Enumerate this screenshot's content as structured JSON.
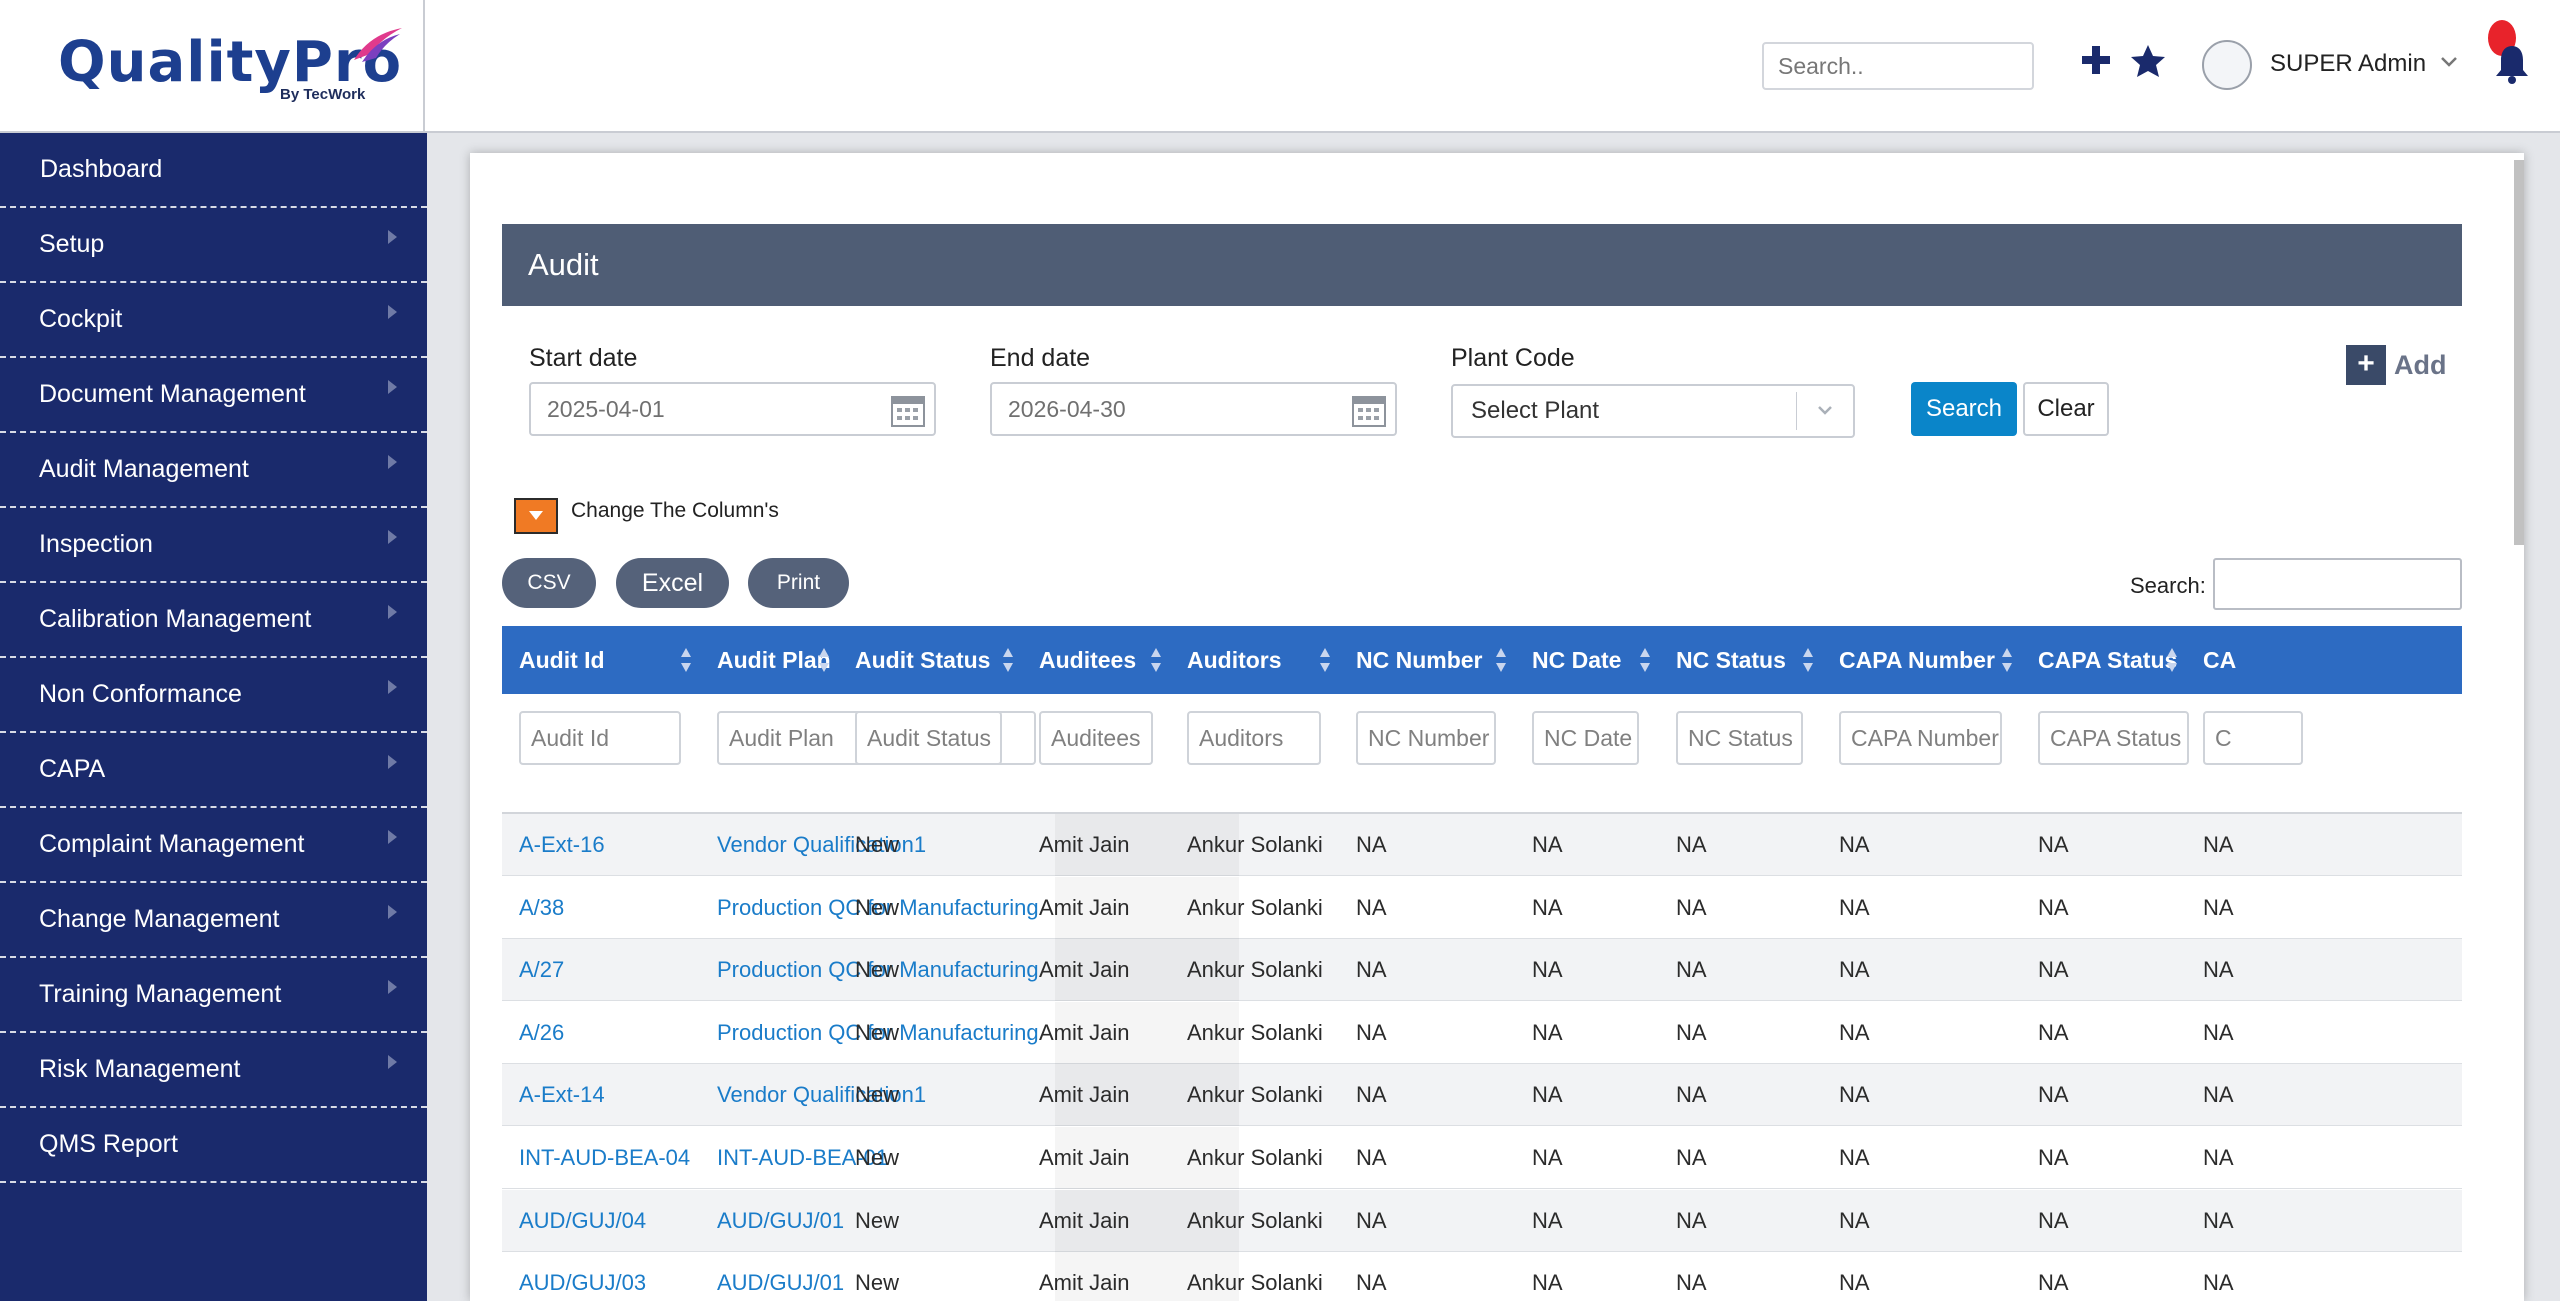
{
  "header": {
    "logo_text": "QualityPro",
    "logo_sub": "By TecWork",
    "search_placeholder": "Search..",
    "user_name": "SUPER Admin",
    "icons": [
      "plus-icon",
      "star-icon",
      "avatar",
      "chevron-down-icon",
      "bell-icon"
    ]
  },
  "sidebar": {
    "items": [
      {
        "label": "Dashboard"
      },
      {
        "label": "Setup"
      },
      {
        "label": "Cockpit"
      },
      {
        "label": "Document Management"
      },
      {
        "label": "Audit Management"
      },
      {
        "label": "Inspection"
      },
      {
        "label": "Calibration Management"
      },
      {
        "label": "Non Conformance"
      },
      {
        "label": "CAPA"
      },
      {
        "label": "Complaint Management"
      },
      {
        "label": "Change Management"
      },
      {
        "label": "Training Management"
      },
      {
        "label": "Risk Management"
      },
      {
        "label": "QMS Report"
      }
    ]
  },
  "panel": {
    "title": "Audit",
    "start_label": "Start date",
    "start_value": "2025-04-01",
    "end_label": "End date",
    "end_value": "2026-04-30",
    "plant_label": "Plant Code",
    "plant_value": "Select Plant",
    "search_btn": "Search",
    "clear_btn": "Clear",
    "add_btn": "Add",
    "change_columns": "Change The Column's",
    "export": {
      "csv": "CSV",
      "excel": "Excel",
      "print": "Print"
    },
    "table_search_label": "Search:"
  },
  "table": {
    "headers": [
      "Audit Id",
      "Audit Plan",
      "Audit Status",
      "Auditees",
      "Auditors",
      "NC Number",
      "NC Date",
      "NC Status",
      "CAPA Number",
      "CAPA Status",
      "CA"
    ],
    "filters": [
      "Audit Id",
      "Audit Plan",
      "Audit Status",
      "Auditees",
      "Auditors",
      "NC Number",
      "NC Date",
      "NC Status",
      "CAPA Number",
      "CAPA Status",
      "C"
    ],
    "rows": [
      [
        "A-Ext-16",
        "Vendor Qualification1",
        "New",
        "Amit Jain",
        "Ankur Solanki",
        "NA",
        "NA",
        "NA",
        "NA",
        "NA",
        "NA"
      ],
      [
        "A/38",
        "Production QC for Manufacturing",
        "New",
        "Amit Jain",
        "Ankur Solanki",
        "NA",
        "NA",
        "NA",
        "NA",
        "NA",
        "NA"
      ],
      [
        "A/27",
        "Production QC for Manufacturing",
        "New",
        "Amit Jain",
        "Ankur Solanki",
        "NA",
        "NA",
        "NA",
        "NA",
        "NA",
        "NA"
      ],
      [
        "A/26",
        "Production QC for Manufacturing",
        "New",
        "Amit Jain",
        "Ankur Solanki",
        "NA",
        "NA",
        "NA",
        "NA",
        "NA",
        "NA"
      ],
      [
        "A-Ext-14",
        "Vendor Qualification1",
        "New",
        "Amit Jain",
        "Ankur Solanki",
        "NA",
        "NA",
        "NA",
        "NA",
        "NA",
        "NA"
      ],
      [
        "INT-AUD-BEA-04",
        "INT-AUD-BEA-01",
        "New",
        "Amit Jain",
        "Ankur Solanki",
        "NA",
        "NA",
        "NA",
        "NA",
        "NA",
        "NA"
      ],
      [
        "AUD/GUJ/04",
        "AUD/GUJ/01",
        "New",
        "Amit Jain",
        "Ankur Solanki",
        "NA",
        "NA",
        "NA",
        "NA",
        "NA",
        "NA"
      ],
      [
        "AUD/GUJ/03",
        "AUD/GUJ/01",
        "New",
        "Amit Jain",
        "Ankur Solanki",
        "NA",
        "NA",
        "NA",
        "NA",
        "NA",
        "NA"
      ]
    ]
  },
  "colors": {
    "sidebar": "#1a2a6c",
    "table_header": "#2d6bc2",
    "panel_title": "#4f5d75",
    "search_button": "#0a85c9",
    "link": "#1a7cc9"
  }
}
